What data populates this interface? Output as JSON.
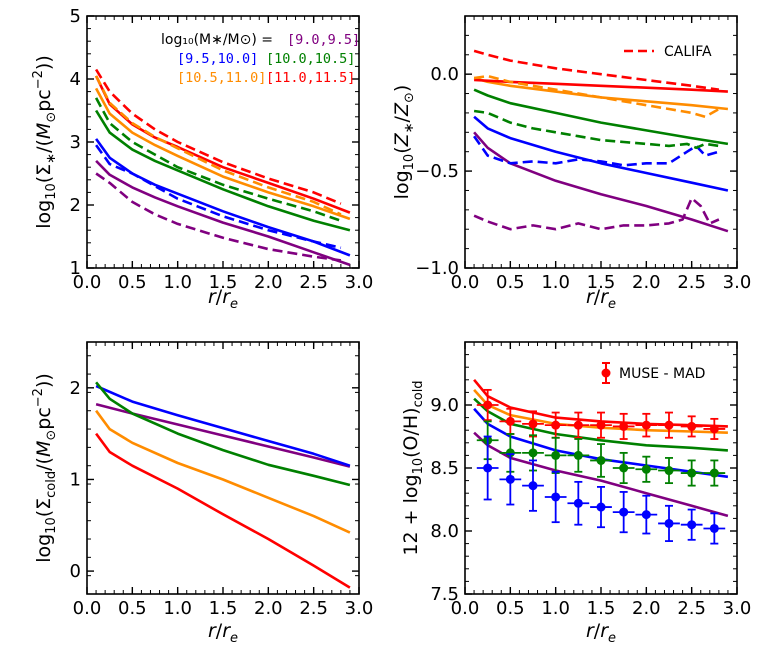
{
  "colors": {
    "mass_9_0": "#800080",
    "mass_9_5": "#0000ff",
    "mass_10_0": "#008000",
    "mass_10_5": "#ff8c00",
    "mass_11_0": "#ff0000"
  },
  "legend_mass": {
    "prefix": "log₁₀(M∗/M⊙) =",
    "bins": [
      "[9.0,9.5]",
      "[9.5,10.0]",
      "[10.0,10.5]",
      "[10.5,11.0]",
      "[11.0,11.5]"
    ]
  },
  "chart_data": [
    {
      "id": "stellar-surface-density",
      "type": "line",
      "xlabel": "r/re",
      "ylabel": "log10(Σ∗/(M⊙pc⁻²))",
      "xlim": [
        0,
        3
      ],
      "ylim": [
        1,
        5
      ],
      "xticks": [
        "0.0",
        "0.5",
        "1.0",
        "1.5",
        "2.0",
        "2.5",
        "3.0"
      ],
      "yticks": [
        "1",
        "2",
        "3",
        "4",
        "5"
      ],
      "series": [
        {
          "name": "[9.0,9.5] model",
          "color": "#800080",
          "dash": false,
          "x": [
            0.1,
            0.25,
            0.5,
            0.75,
            1.0,
            1.5,
            2.0,
            2.5,
            2.9
          ],
          "y": [
            2.7,
            2.48,
            2.28,
            2.12,
            1.98,
            1.72,
            1.5,
            1.25,
            1.05
          ]
        },
        {
          "name": "[9.5,10.0] model",
          "color": "#0000ff",
          "dash": false,
          "x": [
            0.1,
            0.25,
            0.5,
            0.75,
            1.0,
            1.5,
            2.0,
            2.5,
            2.9
          ],
          "y": [
            3.05,
            2.75,
            2.5,
            2.32,
            2.18,
            1.9,
            1.65,
            1.42,
            1.2
          ]
        },
        {
          "name": "[10.0,10.5] model",
          "color": "#008000",
          "dash": false,
          "x": [
            0.1,
            0.25,
            0.5,
            0.75,
            1.0,
            1.5,
            2.0,
            2.5,
            2.9
          ],
          "y": [
            3.5,
            3.15,
            2.88,
            2.7,
            2.55,
            2.25,
            1.98,
            1.75,
            1.6
          ]
        },
        {
          "name": "[10.5,11.0] model",
          "color": "#ff8c00",
          "dash": false,
          "x": [
            0.1,
            0.25,
            0.5,
            0.75,
            1.0,
            1.5,
            2.0,
            2.5,
            2.9
          ],
          "y": [
            3.85,
            3.45,
            3.15,
            2.95,
            2.78,
            2.45,
            2.2,
            1.98,
            1.78
          ]
        },
        {
          "name": "[11.0,11.5] model",
          "color": "#ff0000",
          "dash": false,
          "x": [
            0.1,
            0.25,
            0.5,
            0.75,
            1.0,
            1.5,
            2.0,
            2.5,
            2.9
          ],
          "y": [
            4.05,
            3.6,
            3.28,
            3.07,
            2.92,
            2.6,
            2.35,
            2.1,
            1.88
          ]
        },
        {
          "name": "[9.0,9.5] CALIFA",
          "color": "#800080",
          "dash": true,
          "x": [
            0.1,
            0.25,
            0.5,
            0.75,
            1.0,
            1.5,
            2.0,
            2.5,
            2.8
          ],
          "y": [
            2.5,
            2.35,
            2.05,
            1.85,
            1.7,
            1.48,
            1.3,
            1.18,
            1.12
          ]
        },
        {
          "name": "[9.5,10.0] CALIFA",
          "color": "#0000ff",
          "dash": true,
          "x": [
            0.1,
            0.25,
            0.5,
            0.75,
            1.0,
            1.5,
            2.0,
            2.5,
            2.8
          ],
          "y": [
            2.95,
            2.65,
            2.5,
            2.3,
            2.1,
            1.82,
            1.6,
            1.42,
            1.32
          ]
        },
        {
          "name": "[10.0,10.5] CALIFA",
          "color": "#008000",
          "dash": true,
          "x": [
            0.1,
            0.25,
            0.5,
            0.75,
            1.0,
            1.5,
            2.0,
            2.5,
            2.8
          ],
          "y": [
            3.7,
            3.3,
            3.0,
            2.8,
            2.6,
            2.32,
            2.1,
            1.9,
            1.75
          ]
        },
        {
          "name": "[10.5,11.0] CALIFA",
          "color": "#ff8c00",
          "dash": true,
          "x": [
            0.1,
            0.25,
            0.5,
            0.75,
            1.0,
            1.5,
            2.0,
            2.5,
            2.8
          ],
          "y": [
            4.05,
            3.62,
            3.3,
            3.08,
            2.9,
            2.55,
            2.28,
            2.05,
            1.85
          ]
        },
        {
          "name": "[11.0,11.5] CALIFA",
          "color": "#ff0000",
          "dash": true,
          "x": [
            0.1,
            0.25,
            0.5,
            0.75,
            1.0,
            1.5,
            2.0,
            2.5,
            2.8
          ],
          "y": [
            4.15,
            3.8,
            3.45,
            3.2,
            3.0,
            2.68,
            2.42,
            2.2,
            2.02
          ]
        }
      ]
    },
    {
      "id": "stellar-metallicity",
      "type": "line",
      "xlabel": "r/re",
      "ylabel": "log10(Z∗/Z⊙)",
      "xlim": [
        0,
        3
      ],
      "ylim": [
        -1.0,
        0.3
      ],
      "xticks": [
        "0.0",
        "0.5",
        "1.0",
        "1.5",
        "2.0",
        "2.5",
        "3.0"
      ],
      "yticks": [
        "−1.0",
        "−0.5",
        "0.0"
      ],
      "yticks_values": [
        -1.0,
        -0.5,
        0.0
      ],
      "legend": {
        "label": "CALIFA",
        "placement": "top-right"
      },
      "series": [
        {
          "name": "[9.0,9.5] model",
          "color": "#800080",
          "dash": false,
          "x": [
            0.1,
            0.25,
            0.5,
            1.0,
            1.5,
            2.0,
            2.5,
            2.9
          ],
          "y": [
            -0.3,
            -0.38,
            -0.46,
            -0.55,
            -0.62,
            -0.68,
            -0.75,
            -0.81
          ]
        },
        {
          "name": "[9.5,10.0] model",
          "color": "#0000ff",
          "dash": false,
          "x": [
            0.1,
            0.25,
            0.5,
            1.0,
            1.5,
            2.0,
            2.5,
            2.9
          ],
          "y": [
            -0.22,
            -0.28,
            -0.33,
            -0.4,
            -0.46,
            -0.51,
            -0.56,
            -0.6
          ]
        },
        {
          "name": "[10.0,10.5] model",
          "color": "#008000",
          "dash": false,
          "x": [
            0.1,
            0.25,
            0.5,
            1.0,
            1.5,
            2.0,
            2.5,
            2.9
          ],
          "y": [
            -0.08,
            -0.11,
            -0.15,
            -0.2,
            -0.25,
            -0.29,
            -0.33,
            -0.36
          ]
        },
        {
          "name": "[10.5,11.0] model",
          "color": "#ff8c00",
          "dash": false,
          "x": [
            0.1,
            0.25,
            0.5,
            1.0,
            1.5,
            2.0,
            2.5,
            2.9
          ],
          "y": [
            -0.02,
            -0.04,
            -0.06,
            -0.09,
            -0.12,
            -0.14,
            -0.16,
            -0.18
          ]
        },
        {
          "name": "[11.0,11.5] model",
          "color": "#ff0000",
          "dash": false,
          "x": [
            0.1,
            0.5,
            1.0,
            1.5,
            2.0,
            2.5,
            2.9
          ],
          "y": [
            -0.03,
            -0.04,
            -0.05,
            -0.06,
            -0.07,
            -0.08,
            -0.09
          ]
        },
        {
          "name": "[9.0,9.5] CALIFA",
          "color": "#800080",
          "dash": true,
          "x": [
            0.1,
            0.25,
            0.5,
            0.75,
            1.0,
            1.25,
            1.5,
            1.75,
            2.0,
            2.25,
            2.4,
            2.5,
            2.6,
            2.7,
            2.8
          ],
          "y": [
            -0.73,
            -0.76,
            -0.8,
            -0.78,
            -0.8,
            -0.77,
            -0.8,
            -0.78,
            -0.78,
            -0.77,
            -0.75,
            -0.64,
            -0.68,
            -0.77,
            -0.75
          ]
        },
        {
          "name": "[9.5,10.0] CALIFA",
          "color": "#0000ff",
          "dash": true,
          "x": [
            0.1,
            0.25,
            0.5,
            0.75,
            1.0,
            1.25,
            1.5,
            1.75,
            2.0,
            2.25,
            2.45,
            2.55,
            2.65,
            2.8
          ],
          "y": [
            -0.32,
            -0.42,
            -0.46,
            -0.45,
            -0.46,
            -0.44,
            -0.45,
            -0.47,
            -0.46,
            -0.46,
            -0.4,
            -0.37,
            -0.42,
            -0.4
          ]
        },
        {
          "name": "[10.0,10.5] CALIFA",
          "color": "#008000",
          "dash": true,
          "x": [
            0.1,
            0.25,
            0.5,
            0.75,
            1.0,
            1.25,
            1.5,
            1.75,
            2.0,
            2.25,
            2.45,
            2.55,
            2.65,
            2.8
          ],
          "y": [
            -0.19,
            -0.2,
            -0.25,
            -0.28,
            -0.3,
            -0.32,
            -0.34,
            -0.35,
            -0.36,
            -0.37,
            -0.36,
            -0.38,
            -0.36,
            -0.37
          ]
        },
        {
          "name": "[10.5,11.0] CALIFA",
          "color": "#ff8c00",
          "dash": true,
          "x": [
            0.1,
            0.25,
            0.5,
            0.75,
            1.0,
            1.25,
            1.5,
            1.75,
            2.0,
            2.25,
            2.5,
            2.65,
            2.8
          ],
          "y": [
            -0.02,
            -0.01,
            -0.04,
            -0.06,
            -0.08,
            -0.1,
            -0.12,
            -0.14,
            -0.16,
            -0.18,
            -0.2,
            -0.22,
            -0.18
          ]
        },
        {
          "name": "[11.0,11.5] CALIFA",
          "color": "#ff0000",
          "dash": true,
          "x": [
            0.1,
            0.25,
            0.5,
            1.0,
            1.5,
            2.0,
            2.5,
            2.8
          ],
          "y": [
            0.12,
            0.1,
            0.07,
            0.03,
            0.0,
            -0.03,
            -0.06,
            -0.08
          ]
        }
      ]
    },
    {
      "id": "cold-gas-surface-density",
      "type": "line",
      "xlabel": "r/re",
      "ylabel": "log10(Σcold/(M⊙pc⁻²))",
      "xlim": [
        0,
        3
      ],
      "ylim": [
        -0.25,
        2.5
      ],
      "xticks": [
        "0.0",
        "0.5",
        "1.0",
        "1.5",
        "2.0",
        "2.5",
        "3.0"
      ],
      "yticks": [
        "0",
        "1",
        "2"
      ],
      "yticks_values": [
        0,
        1,
        2
      ],
      "series": [
        {
          "name": "[9.0,9.5] model",
          "color": "#800080",
          "dash": false,
          "x": [
            0.1,
            0.5,
            1.0,
            1.5,
            2.0,
            2.5,
            2.9
          ],
          "y": [
            1.82,
            1.72,
            1.6,
            1.48,
            1.36,
            1.24,
            1.14
          ]
        },
        {
          "name": "[9.5,10.0] model",
          "color": "#0000ff",
          "dash": false,
          "x": [
            0.1,
            0.5,
            1.0,
            1.5,
            2.0,
            2.5,
            2.9
          ],
          "y": [
            2.02,
            1.85,
            1.7,
            1.56,
            1.42,
            1.28,
            1.15
          ]
        },
        {
          "name": "[10.0,10.5] model",
          "color": "#008000",
          "dash": false,
          "x": [
            0.1,
            0.25,
            0.5,
            1.0,
            1.5,
            2.0,
            2.5,
            2.9
          ],
          "y": [
            2.06,
            1.88,
            1.72,
            1.5,
            1.32,
            1.16,
            1.04,
            0.94
          ]
        },
        {
          "name": "[10.5,11.0] model",
          "color": "#ff8c00",
          "dash": false,
          "x": [
            0.1,
            0.25,
            0.5,
            1.0,
            1.5,
            2.0,
            2.5,
            2.9
          ],
          "y": [
            1.75,
            1.55,
            1.4,
            1.18,
            1.0,
            0.8,
            0.6,
            0.42
          ]
        },
        {
          "name": "[11.0,11.5] model",
          "color": "#ff0000",
          "dash": false,
          "x": [
            0.1,
            0.25,
            0.5,
            1.0,
            1.5,
            2.0,
            2.5,
            2.9
          ],
          "y": [
            1.5,
            1.3,
            1.15,
            0.9,
            0.62,
            0.35,
            0.06,
            -0.18
          ]
        }
      ]
    },
    {
      "id": "cold-gas-metallicity",
      "type": "line",
      "xlabel": "r/re",
      "ylabel": "12 + log10(O/H)cold",
      "xlim": [
        0,
        3
      ],
      "ylim": [
        7.5,
        9.5
      ],
      "xticks": [
        "0.0",
        "0.5",
        "1.0",
        "1.5",
        "2.0",
        "2.5",
        "3.0"
      ],
      "yticks": [
        "7.5",
        "8.0",
        "8.5",
        "9.0"
      ],
      "yticks_values": [
        7.5,
        8.0,
        8.5,
        9.0
      ],
      "legend": {
        "label": "MUSE - MAD",
        "placement": "top-right"
      },
      "series": [
        {
          "name": "[9.0,9.5] model",
          "color": "#800080",
          "dash": false,
          "x": [
            0.1,
            0.25,
            0.5,
            1.0,
            1.5,
            2.0,
            2.5,
            2.9
          ],
          "y": [
            8.78,
            8.68,
            8.58,
            8.48,
            8.4,
            8.3,
            8.2,
            8.12
          ]
        },
        {
          "name": "[9.5,10.0] model",
          "color": "#0000ff",
          "dash": false,
          "x": [
            0.1,
            0.25,
            0.5,
            1.0,
            1.5,
            2.0,
            2.5,
            2.9
          ],
          "y": [
            8.97,
            8.85,
            8.75,
            8.64,
            8.57,
            8.52,
            8.47,
            8.43
          ]
        },
        {
          "name": "[10.0,10.5] model",
          "color": "#008000",
          "dash": false,
          "x": [
            0.1,
            0.25,
            0.5,
            1.0,
            1.5,
            2.0,
            2.5,
            2.9
          ],
          "y": [
            9.05,
            8.95,
            8.85,
            8.77,
            8.72,
            8.68,
            8.66,
            8.64
          ]
        },
        {
          "name": "[10.5,11.0] model",
          "color": "#ff8c00",
          "dash": false,
          "x": [
            0.1,
            0.25,
            0.5,
            1.0,
            1.5,
            2.0,
            2.5,
            2.9
          ],
          "y": [
            9.12,
            9.0,
            8.92,
            8.85,
            8.82,
            8.8,
            8.79,
            8.78
          ]
        },
        {
          "name": "[11.0,11.5] model",
          "color": "#ff0000",
          "dash": false,
          "x": [
            0.1,
            0.25,
            0.5,
            1.0,
            1.5,
            2.0,
            2.5,
            2.9
          ],
          "y": [
            9.2,
            9.07,
            8.98,
            8.9,
            8.87,
            8.85,
            8.84,
            8.83
          ]
        }
      ],
      "observations": [
        {
          "name": "MUSE-MAD [11.0,11.5]",
          "color": "#ff0000",
          "x": [
            0.25,
            0.5,
            0.75,
            1.0,
            1.25,
            1.5,
            1.75,
            2.0,
            2.25,
            2.5,
            2.75
          ],
          "y": [
            9.0,
            8.87,
            8.85,
            8.84,
            8.84,
            8.84,
            8.83,
            8.84,
            8.84,
            8.83,
            8.81
          ],
          "yerr": [
            0.12,
            0.1,
            0.1,
            0.1,
            0.1,
            0.1,
            0.1,
            0.09,
            0.1,
            0.08,
            0.08
          ],
          "xerr": 0.12
        },
        {
          "name": "MUSE-MAD [10.0,10.5]",
          "color": "#008000",
          "x": [
            0.25,
            0.5,
            0.75,
            1.0,
            1.25,
            1.5,
            1.75,
            2.0,
            2.25,
            2.5,
            2.75
          ],
          "y": [
            8.72,
            8.62,
            8.62,
            8.6,
            8.6,
            8.56,
            8.5,
            8.49,
            8.48,
            8.46,
            8.46
          ],
          "yerr": [
            0.15,
            0.15,
            0.14,
            0.14,
            0.13,
            0.13,
            0.12,
            0.1,
            0.1,
            0.1,
            0.1
          ],
          "xerr": 0.12
        },
        {
          "name": "MUSE-MAD [9.5,10.0]",
          "color": "#0000ff",
          "x": [
            0.25,
            0.5,
            0.75,
            1.0,
            1.25,
            1.5,
            1.75,
            2.0,
            2.25,
            2.5,
            2.75
          ],
          "y": [
            8.5,
            8.41,
            8.36,
            8.27,
            8.22,
            8.19,
            8.15,
            8.13,
            8.06,
            8.05,
            8.02
          ],
          "yerr": [
            0.25,
            0.2,
            0.2,
            0.2,
            0.17,
            0.16,
            0.16,
            0.15,
            0.14,
            0.12,
            0.12
          ],
          "xerr": 0.12
        }
      ]
    }
  ]
}
